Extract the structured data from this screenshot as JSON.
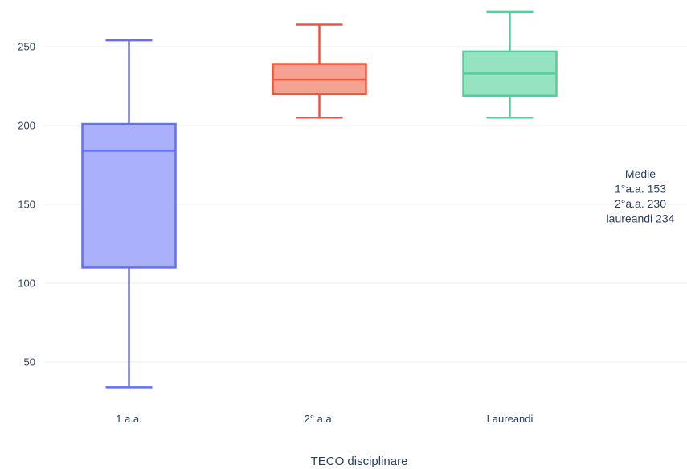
{
  "chart_data": {
    "type": "box",
    "xlabel": "TECO disciplinare",
    "ylabel": "",
    "ylim": [
      25,
      275
    ],
    "yticks": [
      50,
      100,
      150,
      200,
      250
    ],
    "grid": true,
    "categories": [
      "1 a.a.",
      "2° a.a.",
      "Laureandi"
    ],
    "boxes": [
      {
        "category": "1 a.a.",
        "min": 34,
        "q1": 110,
        "median": 184,
        "q3": 201,
        "max": 254,
        "color": "#636efa",
        "fill": "#abb0fc"
      },
      {
        "category": "2° a.a.",
        "min": 205,
        "q1": 220,
        "median": 229,
        "q3": 239,
        "max": 264,
        "color": "#ef553b",
        "fill": "#f5a293"
      },
      {
        "category": "Laureandi",
        "min": 205,
        "q1": 219,
        "median": 233,
        "q3": 247,
        "max": 272,
        "color": "#53cf98",
        "fill": "#96e3c2"
      }
    ],
    "annotation": [
      "Medie",
      "1°a.a. 153",
      "2°a.a. 230",
      "laureandi 234"
    ]
  }
}
